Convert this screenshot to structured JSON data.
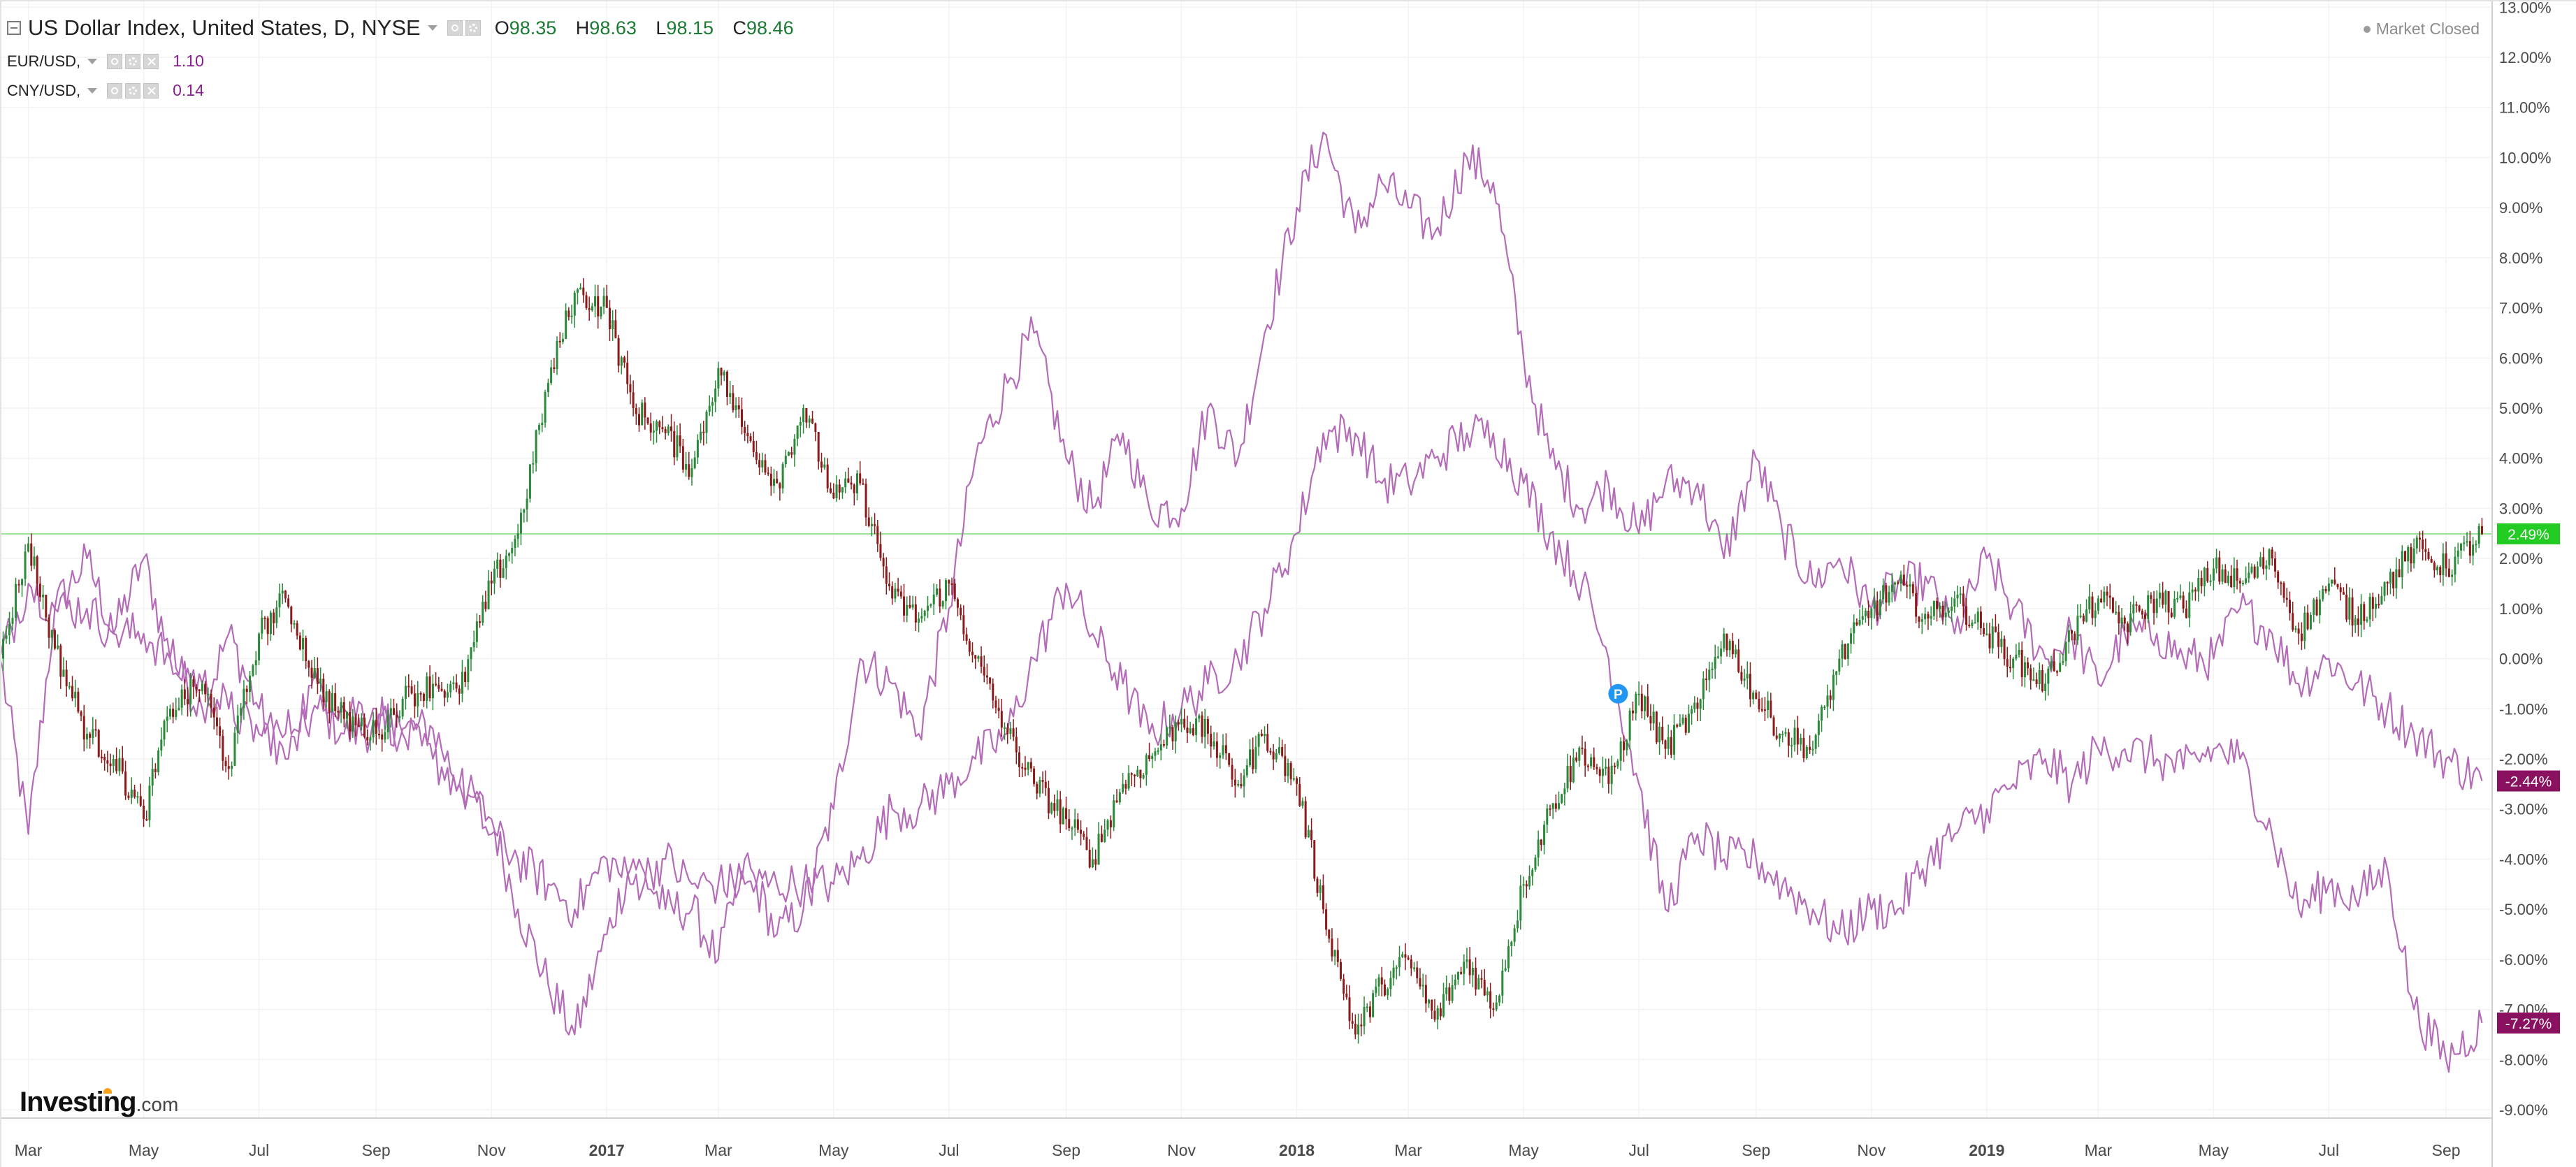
{
  "header": {
    "title": "US Dollar Index, United States, D, NYSE",
    "ohlc": [
      {
        "label": "O",
        "value": "98.35"
      },
      {
        "label": "H",
        "value": "98.63"
      },
      {
        "label": "L",
        "value": "98.15"
      },
      {
        "label": "C",
        "value": "98.46"
      }
    ],
    "comparisons": [
      {
        "name": "EUR/USD,",
        "value": "1.10"
      },
      {
        "name": "CNY/USD,",
        "value": "0.14"
      }
    ],
    "market_status": "Market Closed"
  },
  "logo": {
    "brand": "Investing",
    "suffix": ".com"
  },
  "colors": {
    "up_candle": "#2a8a3a",
    "down_candle": "#8b1a1a",
    "compare_line": "#b46bb8",
    "baseline": "#9be29b",
    "badge_index": "#22cc22",
    "badge_compare": "#8a1060",
    "axis_text": "#4a4a4a",
    "grid": "#f3f3f3"
  },
  "chart_data": {
    "type": "line",
    "yaxis": {
      "unit": "%",
      "range": [
        -9.5,
        13
      ],
      "ticks": [
        "13.00%",
        "12.00%",
        "11.00%",
        "10.00%",
        "9.00%",
        "8.00%",
        "7.00%",
        "6.00%",
        "5.00%",
        "4.00%",
        "3.00%",
        "2.00%",
        "1.00%",
        "0.00%",
        "-1.00%",
        "-2.00%",
        "-3.00%",
        "-4.00%",
        "-5.00%",
        "-6.00%",
        "-7.00%",
        "-8.00%",
        "-9.00%"
      ],
      "tick_values": [
        13,
        12,
        11,
        10,
        9,
        8,
        7,
        6,
        5,
        4,
        3,
        2,
        1,
        0,
        -1,
        -2,
        -3,
        -4,
        -5,
        -6,
        -7,
        -8,
        -9
      ]
    },
    "xaxis": {
      "range": [
        "2016-02-15",
        "2019-09-25"
      ],
      "ticks": [
        {
          "label": "Mar",
          "date": "2016-03-01",
          "bold": false
        },
        {
          "label": "May",
          "date": "2016-05-01",
          "bold": false
        },
        {
          "label": "Jul",
          "date": "2016-07-01",
          "bold": false
        },
        {
          "label": "Sep",
          "date": "2016-09-01",
          "bold": false
        },
        {
          "label": "Nov",
          "date": "2016-11-01",
          "bold": false
        },
        {
          "label": "2017",
          "date": "2017-01-01",
          "bold": true
        },
        {
          "label": "Mar",
          "date": "2017-03-01",
          "bold": false
        },
        {
          "label": "May",
          "date": "2017-05-01",
          "bold": false
        },
        {
          "label": "Jul",
          "date": "2017-07-01",
          "bold": false
        },
        {
          "label": "Sep",
          "date": "2017-09-01",
          "bold": false
        },
        {
          "label": "Nov",
          "date": "2017-11-01",
          "bold": false
        },
        {
          "label": "2018",
          "date": "2018-01-01",
          "bold": true
        },
        {
          "label": "Mar",
          "date": "2018-03-01",
          "bold": false
        },
        {
          "label": "May",
          "date": "2018-05-01",
          "bold": false
        },
        {
          "label": "Jul",
          "date": "2018-07-01",
          "bold": false
        },
        {
          "label": "Sep",
          "date": "2018-09-01",
          "bold": false
        },
        {
          "label": "Nov",
          "date": "2018-11-01",
          "bold": false
        },
        {
          "label": "2019",
          "date": "2019-01-01",
          "bold": true
        },
        {
          "label": "Mar",
          "date": "2019-03-01",
          "bold": false
        },
        {
          "label": "May",
          "date": "2019-05-01",
          "bold": false
        },
        {
          "label": "Jul",
          "date": "2019-07-01",
          "bold": false
        },
        {
          "label": "Sep",
          "date": "2019-09-01",
          "bold": false
        }
      ]
    },
    "baseline_value": 2.49,
    "last_value_badges": [
      {
        "series": "US Dollar Index",
        "label": "2.49%",
        "value": 2.49
      },
      {
        "series": "EUR/USD",
        "label": "-2.44%",
        "value": -2.44
      },
      {
        "series": "CNY/USD",
        "label": "-7.27%",
        "value": -7.27
      }
    ],
    "marker": {
      "label": "P",
      "date": "2018-06-20",
      "value": -0.7
    },
    "series": [
      {
        "name": "US Dollar Index",
        "style": "candlestick",
        "x": [
          "2016-02-15",
          "2016-03-01",
          "2016-03-15",
          "2016-04-01",
          "2016-04-15",
          "2016-05-01",
          "2016-05-15",
          "2016-06-01",
          "2016-06-15",
          "2016-07-01",
          "2016-07-15",
          "2016-08-01",
          "2016-08-15",
          "2016-09-01",
          "2016-09-15",
          "2016-10-01",
          "2016-10-15",
          "2016-11-01",
          "2016-11-15",
          "2016-12-01",
          "2016-12-15",
          "2017-01-01",
          "2017-01-15",
          "2017-02-01",
          "2017-02-15",
          "2017-03-01",
          "2017-03-15",
          "2017-04-01",
          "2017-04-15",
          "2017-05-01",
          "2017-05-15",
          "2017-06-01",
          "2017-06-15",
          "2017-07-01",
          "2017-07-15",
          "2017-08-01",
          "2017-08-15",
          "2017-09-01",
          "2017-09-15",
          "2017-10-01",
          "2017-10-15",
          "2017-11-01",
          "2017-11-15",
          "2017-12-01",
          "2017-12-15",
          "2018-01-01",
          "2018-01-15",
          "2018-02-01",
          "2018-02-15",
          "2018-03-01",
          "2018-03-15",
          "2018-04-01",
          "2018-04-15",
          "2018-05-01",
          "2018-05-15",
          "2018-06-01",
          "2018-06-15",
          "2018-07-01",
          "2018-07-15",
          "2018-08-01",
          "2018-08-15",
          "2018-09-01",
          "2018-09-15",
          "2018-10-01",
          "2018-10-15",
          "2018-11-01",
          "2018-11-15",
          "2018-12-01",
          "2018-12-15",
          "2019-01-01",
          "2019-01-15",
          "2019-02-01",
          "2019-02-15",
          "2019-03-01",
          "2019-03-15",
          "2019-04-01",
          "2019-04-15",
          "2019-05-01",
          "2019-05-15",
          "2019-06-01",
          "2019-06-15",
          "2019-07-01",
          "2019-07-15",
          "2019-08-01",
          "2019-08-15",
          "2019-09-01",
          "2019-09-20"
        ],
        "values": [
          0.0,
          2.3,
          0.2,
          -1.5,
          -2.0,
          -3.2,
          -1.0,
          -0.5,
          -2.2,
          0.5,
          1.2,
          -0.5,
          -1.2,
          -1.5,
          -0.8,
          -0.5,
          -0.7,
          1.5,
          2.5,
          5.5,
          7.3,
          7.0,
          5.0,
          4.5,
          3.8,
          5.8,
          4.5,
          3.5,
          5.0,
          3.2,
          3.5,
          1.2,
          0.8,
          1.5,
          0.0,
          -1.5,
          -2.5,
          -3.2,
          -4.0,
          -2.5,
          -2.0,
          -1.2,
          -1.5,
          -2.5,
          -1.5,
          -2.5,
          -5.0,
          -7.5,
          -6.5,
          -6.0,
          -7.2,
          -6.0,
          -7.0,
          -4.5,
          -3.0,
          -1.8,
          -2.5,
          -0.7,
          -1.8,
          -1.0,
          0.5,
          -0.8,
          -1.5,
          -1.8,
          0.0,
          1.0,
          1.5,
          0.8,
          1.2,
          0.5,
          0.0,
          -0.5,
          0.5,
          1.2,
          0.7,
          1.2,
          1.0,
          1.8,
          1.5,
          2.0,
          0.5,
          1.5,
          0.8,
          1.5,
          2.2,
          1.8,
          2.49
        ]
      },
      {
        "name": "EUR/USD",
        "style": "line",
        "x": [
          "2016-02-15",
          "2016-03-01",
          "2016-03-15",
          "2016-04-01",
          "2016-04-15",
          "2016-05-01",
          "2016-05-15",
          "2016-06-01",
          "2016-06-15",
          "2016-07-01",
          "2016-07-15",
          "2016-08-01",
          "2016-08-15",
          "2016-09-01",
          "2016-09-15",
          "2016-10-01",
          "2016-10-15",
          "2016-11-01",
          "2016-11-15",
          "2016-12-01",
          "2016-12-15",
          "2017-01-01",
          "2017-01-15",
          "2017-02-01",
          "2017-02-15",
          "2017-03-01",
          "2017-03-15",
          "2017-04-01",
          "2017-04-15",
          "2017-05-01",
          "2017-05-15",
          "2017-06-01",
          "2017-06-15",
          "2017-07-01",
          "2017-07-15",
          "2017-08-01",
          "2017-08-15",
          "2017-09-01",
          "2017-09-15",
          "2017-10-01",
          "2017-10-15",
          "2017-11-01",
          "2017-11-15",
          "2017-12-01",
          "2017-12-15",
          "2018-01-01",
          "2018-01-15",
          "2018-02-01",
          "2018-02-15",
          "2018-03-01",
          "2018-03-15",
          "2018-04-01",
          "2018-04-15",
          "2018-05-01",
          "2018-05-15",
          "2018-06-01",
          "2018-06-15",
          "2018-07-01",
          "2018-07-15",
          "2018-08-01",
          "2018-08-15",
          "2018-09-01",
          "2018-09-15",
          "2018-10-01",
          "2018-10-15",
          "2018-11-01",
          "2018-11-15",
          "2018-12-01",
          "2018-12-15",
          "2019-01-01",
          "2019-01-15",
          "2019-02-01",
          "2019-02-15",
          "2019-03-01",
          "2019-03-15",
          "2019-04-01",
          "2019-04-15",
          "2019-05-01",
          "2019-05-15",
          "2019-06-01",
          "2019-06-15",
          "2019-07-01",
          "2019-07-15",
          "2019-08-01",
          "2019-08-15",
          "2019-09-01",
          "2019-09-20"
        ],
        "values": [
          0.0,
          -3.5,
          1.0,
          2.0,
          0.5,
          2.0,
          0.0,
          -1.0,
          0.5,
          -1.0,
          -2.0,
          -1.0,
          -1.5,
          -1.4,
          -1.4,
          -1.4,
          -2.5,
          -3.2,
          -5.0,
          -6.5,
          -7.5,
          -5.5,
          -4.0,
          -5.0,
          -5.0,
          -6.0,
          -4.0,
          -5.5,
          -5.0,
          -3.0,
          0.0,
          -0.5,
          -1.5,
          1.0,
          4.0,
          5.5,
          6.5,
          4.0,
          3.0,
          4.5,
          3.0,
          3.0,
          5.0,
          4.0,
          6.5,
          9.0,
          10.5,
          8.5,
          9.5,
          9.0,
          8.5,
          10.0,
          9.5,
          6.0,
          4.0,
          3.0,
          3.5,
          2.5,
          3.5,
          3.5,
          2.0,
          4.0,
          2.5,
          1.5,
          2.0,
          1.0,
          1.5,
          1.5,
          0.5,
          2.0,
          1.0,
          0.0,
          0.5,
          -0.5,
          0.5,
          0.5,
          0.0,
          0.0,
          1.0,
          0.5,
          -0.5,
          0.0,
          -0.5,
          -1.0,
          -1.5,
          -2.0,
          -2.44
        ]
      },
      {
        "name": "CNY/USD",
        "style": "line",
        "x": [
          "2016-02-15",
          "2016-03-01",
          "2016-03-15",
          "2016-04-01",
          "2016-04-15",
          "2016-05-01",
          "2016-05-15",
          "2016-06-01",
          "2016-06-15",
          "2016-07-01",
          "2016-07-15",
          "2016-08-01",
          "2016-08-15",
          "2016-09-01",
          "2016-09-15",
          "2016-10-01",
          "2016-10-15",
          "2016-11-01",
          "2016-11-15",
          "2016-12-01",
          "2016-12-15",
          "2017-01-01",
          "2017-01-15",
          "2017-02-01",
          "2017-02-15",
          "2017-03-01",
          "2017-03-15",
          "2017-04-01",
          "2017-04-15",
          "2017-05-01",
          "2017-05-15",
          "2017-06-01",
          "2017-06-15",
          "2017-07-01",
          "2017-07-15",
          "2017-08-01",
          "2017-08-15",
          "2017-09-01",
          "2017-09-15",
          "2017-10-01",
          "2017-10-15",
          "2017-11-01",
          "2017-11-15",
          "2017-12-01",
          "2017-12-15",
          "2018-01-01",
          "2018-01-15",
          "2018-02-01",
          "2018-02-15",
          "2018-03-01",
          "2018-03-15",
          "2018-04-01",
          "2018-04-15",
          "2018-05-01",
          "2018-05-15",
          "2018-06-01",
          "2018-06-15",
          "2018-07-01",
          "2018-07-15",
          "2018-08-01",
          "2018-08-15",
          "2018-09-01",
          "2018-09-15",
          "2018-10-01",
          "2018-10-15",
          "2018-11-01",
          "2018-11-15",
          "2018-12-01",
          "2018-12-15",
          "2019-01-01",
          "2019-01-15",
          "2019-02-01",
          "2019-02-15",
          "2019-03-01",
          "2019-03-15",
          "2019-04-01",
          "2019-04-15",
          "2019-05-01",
          "2019-05-15",
          "2019-06-01",
          "2019-06-15",
          "2019-07-01",
          "2019-07-15",
          "2019-08-01",
          "2019-08-15",
          "2019-09-01",
          "2019-09-20"
        ],
        "values": [
          0.0,
          1.5,
          1.0,
          1.0,
          0.5,
          0.5,
          0.0,
          -0.5,
          -1.0,
          -1.5,
          -1.5,
          -0.5,
          -1.0,
          -1.0,
          -1.5,
          -2.0,
          -2.5,
          -3.5,
          -4.0,
          -4.5,
          -5.0,
          -4.0,
          -4.5,
          -4.0,
          -4.5,
          -4.5,
          -4.5,
          -4.5,
          -4.5,
          -4.5,
          -4.0,
          -3.0,
          -3.0,
          -2.5,
          -2.0,
          -1.5,
          0.0,
          1.5,
          0.5,
          -0.5,
          -1.5,
          -1.0,
          -0.5,
          0.0,
          1.0,
          2.5,
          4.5,
          4.5,
          3.5,
          3.5,
          4.0,
          4.5,
          4.5,
          3.5,
          2.5,
          1.5,
          0.0,
          -2.5,
          -5.0,
          -3.5,
          -4.0,
          -4.0,
          -4.5,
          -5.0,
          -5.5,
          -5.0,
          -5.0,
          -4.0,
          -3.5,
          -3.0,
          -2.5,
          -2.0,
          -2.5,
          -1.8,
          -1.8,
          -2.0,
          -2.2,
          -1.8,
          -2.0,
          -3.5,
          -5.0,
          -4.5,
          -4.8,
          -4.2,
          -7.0,
          -8.0,
          -7.27
        ]
      }
    ]
  }
}
